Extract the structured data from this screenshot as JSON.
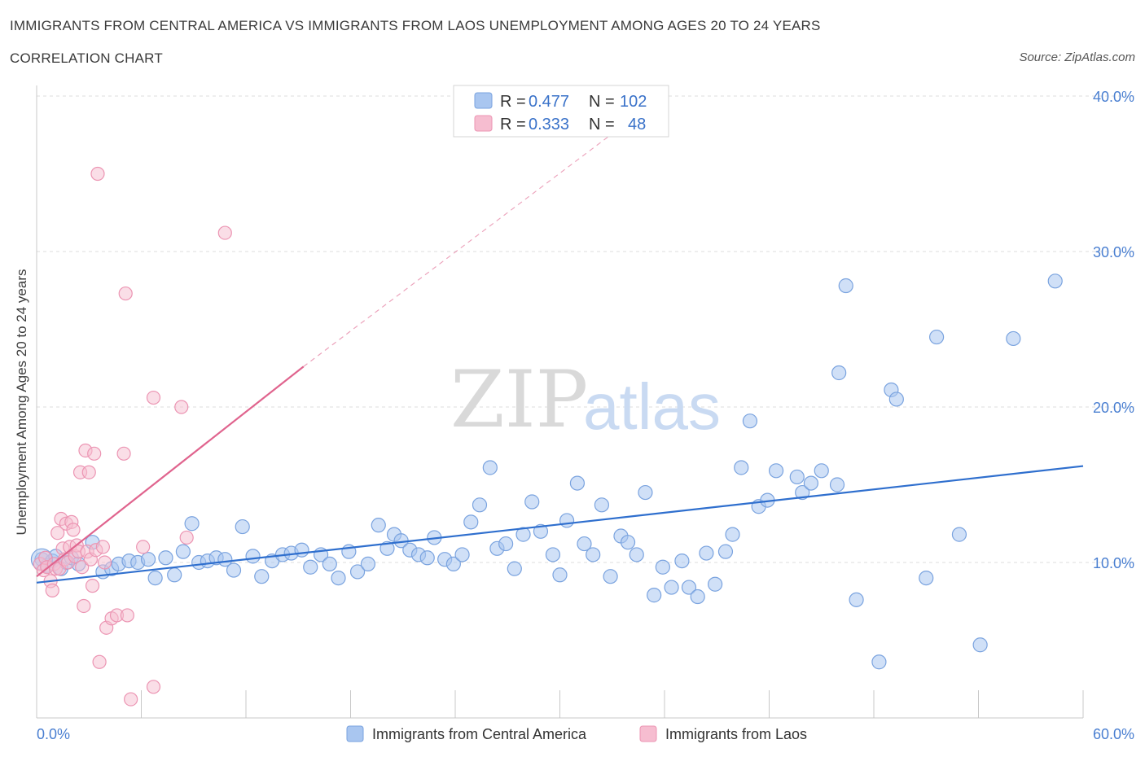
{
  "header": {
    "title": "IMMIGRANTS FROM CENTRAL AMERICA VS IMMIGRANTS FROM LAOS UNEMPLOYMENT AMONG AGES 20 TO 24 YEARS",
    "subtitle": "CORRELATION CHART",
    "source": "Source: ZipAtlas.com"
  },
  "watermark": {
    "zip": "ZIP",
    "atlas": "atlas"
  },
  "colors": {
    "blue_fill": "#a9c6f0",
    "blue_stroke": "#7aa3df",
    "blue_line": "#2f6fce",
    "pink_fill": "#f6bdd0",
    "pink_stroke": "#ec95b3",
    "pink_line": "#e0648e",
    "grid": "#dcdcdc",
    "axis_label": "#4a7fd1"
  },
  "legend": {
    "rows": [
      {
        "r_label": "R =",
        "r_value": "0.477",
        "n_label": "N =",
        "n_value": "102"
      },
      {
        "r_label": "R =",
        "r_value": "0.333",
        "n_label": "N =",
        "n_value": "48"
      }
    ]
  },
  "bottom_legend": {
    "items": [
      "Immigrants from Central America",
      "Immigrants from Laos"
    ]
  },
  "chart_data": {
    "type": "scatter",
    "title": "IMMIGRANTS FROM CENTRAL AMERICA VS IMMIGRANTS FROM LAOS UNEMPLOYMENT AMONG AGES 20 TO 24 YEARS",
    "xlabel": "",
    "ylabel": "Unemployment Among Ages 20 to 24 years",
    "xlim": [
      0,
      60
    ],
    "ylim": [
      0,
      40
    ],
    "x_tick_labels": [
      "0.0%",
      "60.0%"
    ],
    "y_ticks": [
      10,
      20,
      30,
      40
    ],
    "y_tick_labels": [
      "10.0%",
      "20.0%",
      "30.0%",
      "40.0%"
    ],
    "series": [
      {
        "name": "Immigrants from Central America",
        "R": 0.477,
        "N": 102,
        "trend": {
          "x0": 0,
          "y0": 8.7,
          "x1": 60,
          "y1": 16.2
        },
        "points": [
          [
            0.3,
            10.2
          ],
          [
            0.6,
            9.8
          ],
          [
            0.9,
            10.1
          ],
          [
            1.1,
            10.4
          ],
          [
            1.4,
            9.6
          ],
          [
            1.7,
            10.0
          ],
          [
            2.0,
            10.3
          ],
          [
            2.4,
            9.9
          ],
          [
            3.2,
            11.3
          ],
          [
            3.8,
            9.4
          ],
          [
            4.3,
            9.6
          ],
          [
            4.7,
            9.9
          ],
          [
            5.3,
            10.1
          ],
          [
            5.8,
            10.0
          ],
          [
            6.4,
            10.2
          ],
          [
            6.8,
            9.0
          ],
          [
            7.4,
            10.3
          ],
          [
            7.9,
            9.2
          ],
          [
            8.4,
            10.7
          ],
          [
            8.9,
            12.5
          ],
          [
            9.3,
            10.0
          ],
          [
            9.8,
            10.1
          ],
          [
            10.3,
            10.3
          ],
          [
            10.8,
            10.2
          ],
          [
            11.3,
            9.5
          ],
          [
            11.8,
            12.3
          ],
          [
            12.4,
            10.4
          ],
          [
            12.9,
            9.1
          ],
          [
            13.5,
            10.1
          ],
          [
            14.1,
            10.5
          ],
          [
            14.6,
            10.6
          ],
          [
            15.2,
            10.8
          ],
          [
            15.7,
            9.7
          ],
          [
            16.3,
            10.5
          ],
          [
            16.8,
            9.9
          ],
          [
            17.3,
            9.0
          ],
          [
            17.9,
            10.7
          ],
          [
            18.4,
            9.4
          ],
          [
            19.0,
            9.9
          ],
          [
            19.6,
            12.4
          ],
          [
            20.1,
            10.9
          ],
          [
            20.5,
            11.8
          ],
          [
            20.9,
            11.4
          ],
          [
            21.4,
            10.8
          ],
          [
            21.9,
            10.5
          ],
          [
            22.4,
            10.3
          ],
          [
            22.8,
            11.6
          ],
          [
            23.4,
            10.2
          ],
          [
            23.9,
            9.9
          ],
          [
            24.4,
            10.5
          ],
          [
            24.9,
            12.6
          ],
          [
            25.4,
            13.7
          ],
          [
            26.0,
            16.1
          ],
          [
            26.4,
            10.9
          ],
          [
            26.9,
            11.2
          ],
          [
            27.4,
            9.6
          ],
          [
            27.9,
            11.8
          ],
          [
            28.4,
            13.9
          ],
          [
            28.9,
            12.0
          ],
          [
            29.6,
            10.5
          ],
          [
            30.0,
            9.2
          ],
          [
            30.4,
            12.7
          ],
          [
            31.0,
            15.1
          ],
          [
            31.4,
            11.2
          ],
          [
            31.9,
            10.5
          ],
          [
            32.4,
            13.7
          ],
          [
            32.9,
            9.1
          ],
          [
            33.5,
            11.7
          ],
          [
            33.9,
            11.3
          ],
          [
            34.4,
            10.5
          ],
          [
            34.9,
            14.5
          ],
          [
            35.4,
            7.9
          ],
          [
            35.9,
            9.7
          ],
          [
            36.4,
            8.4
          ],
          [
            37.0,
            10.1
          ],
          [
            37.4,
            8.4
          ],
          [
            37.9,
            7.8
          ],
          [
            38.4,
            10.6
          ],
          [
            38.9,
            8.6
          ],
          [
            39.5,
            10.7
          ],
          [
            39.9,
            11.8
          ],
          [
            40.4,
            16.1
          ],
          [
            40.9,
            19.1
          ],
          [
            41.4,
            13.6
          ],
          [
            41.9,
            14.0
          ],
          [
            42.4,
            15.9
          ],
          [
            43.6,
            15.5
          ],
          [
            43.9,
            14.5
          ],
          [
            44.4,
            15.1
          ],
          [
            45.0,
            15.9
          ],
          [
            45.9,
            15.0
          ],
          [
            46.4,
            27.8
          ],
          [
            46.0,
            22.2
          ],
          [
            47.0,
            7.6
          ],
          [
            48.3,
            3.6
          ],
          [
            49.0,
            21.1
          ],
          [
            49.3,
            20.5
          ],
          [
            51.0,
            9.0
          ],
          [
            51.6,
            24.5
          ],
          [
            52.9,
            11.8
          ],
          [
            54.1,
            4.7
          ],
          [
            56.0,
            24.4
          ],
          [
            58.4,
            28.1
          ]
        ]
      },
      {
        "name": "Immigrants from Laos",
        "R": 0.333,
        "N": 48,
        "trend": {
          "x0": 0,
          "y0": 9.1,
          "x1": 15.3,
          "y1": 22.6,
          "dash_x1": 33.5,
          "dash_y1": 38.0
        },
        "points": [
          [
            0.2,
            9.9
          ],
          [
            0.4,
            9.5
          ],
          [
            0.5,
            10.3
          ],
          [
            0.6,
            9.7
          ],
          [
            0.8,
            8.8
          ],
          [
            0.9,
            8.2
          ],
          [
            1.0,
            9.9
          ],
          [
            1.1,
            9.6
          ],
          [
            1.2,
            11.9
          ],
          [
            1.3,
            9.6
          ],
          [
            1.4,
            12.8
          ],
          [
            1.5,
            10.9
          ],
          [
            1.6,
            10.2
          ],
          [
            1.7,
            12.5
          ],
          [
            1.8,
            10.0
          ],
          [
            1.9,
            11.0
          ],
          [
            2.0,
            12.6
          ],
          [
            2.1,
            12.1
          ],
          [
            2.2,
            10.4
          ],
          [
            2.3,
            11.1
          ],
          [
            2.4,
            10.7
          ],
          [
            2.5,
            15.8
          ],
          [
            2.6,
            9.7
          ],
          [
            2.7,
            7.2
          ],
          [
            2.8,
            17.2
          ],
          [
            2.9,
            10.7
          ],
          [
            3.0,
            15.8
          ],
          [
            3.1,
            10.2
          ],
          [
            3.2,
            8.5
          ],
          [
            3.3,
            17.0
          ],
          [
            3.4,
            10.8
          ],
          [
            3.5,
            35.0
          ],
          [
            3.6,
            3.6
          ],
          [
            3.8,
            11.0
          ],
          [
            3.9,
            10.0
          ],
          [
            4.0,
            5.8
          ],
          [
            4.3,
            6.4
          ],
          [
            4.6,
            6.6
          ],
          [
            5.0,
            17.0
          ],
          [
            5.1,
            27.3
          ],
          [
            5.2,
            6.6
          ],
          [
            5.4,
            1.2
          ],
          [
            6.1,
            11.0
          ],
          [
            6.7,
            2.0
          ],
          [
            6.7,
            20.6
          ],
          [
            8.3,
            20.0
          ],
          [
            8.6,
            11.6
          ],
          [
            10.8,
            31.2
          ]
        ]
      }
    ]
  }
}
